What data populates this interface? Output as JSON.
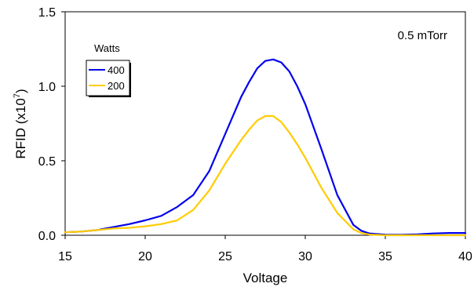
{
  "chart_data": {
    "type": "line",
    "xlabel": "Voltage",
    "ylabel": "RFID (x10",
    "ylabel_exponent": "7",
    "ylabel_suffix": ")",
    "annotation": "0.5 mTorr",
    "xlim": [
      15,
      40
    ],
    "ylim": [
      0,
      1.5
    ],
    "xticks": [
      15,
      20,
      25,
      30,
      35,
      40
    ],
    "yticks": [
      0.0,
      0.5,
      1.0,
      1.5
    ],
    "ytick_labels": [
      "0.0",
      "0.5",
      "1.0",
      "1.5"
    ],
    "grid": false,
    "legend": {
      "title": "Watts",
      "placement": "upper-left",
      "entries": [
        "400",
        "200"
      ]
    },
    "series": [
      {
        "name": "400",
        "color": "#0000ee",
        "x": [
          15,
          16,
          17,
          18,
          19,
          20,
          21,
          22,
          23,
          24,
          25,
          26,
          26.5,
          27,
          27.5,
          28,
          28.5,
          29,
          29.5,
          30,
          31,
          32,
          33,
          33.5,
          34,
          35,
          36,
          37,
          38,
          39,
          40
        ],
        "y": [
          0.02,
          0.025,
          0.035,
          0.055,
          0.075,
          0.1,
          0.13,
          0.19,
          0.27,
          0.43,
          0.68,
          0.93,
          1.03,
          1.12,
          1.17,
          1.18,
          1.16,
          1.1,
          1.0,
          0.88,
          0.58,
          0.27,
          0.07,
          0.03,
          0.012,
          0.004,
          0.003,
          0.006,
          0.012,
          0.015,
          0.015
        ]
      },
      {
        "name": "200",
        "color": "#ffcc00",
        "x": [
          15,
          16,
          17,
          18,
          19,
          20,
          21,
          22,
          23,
          24,
          25,
          26,
          26.5,
          27,
          27.5,
          28,
          28.5,
          29,
          29.5,
          30,
          31,
          32,
          33,
          33.5,
          34,
          35,
          36,
          37,
          38,
          39,
          40
        ],
        "y": [
          0.02,
          0.025,
          0.035,
          0.045,
          0.05,
          0.06,
          0.075,
          0.1,
          0.17,
          0.3,
          0.48,
          0.64,
          0.71,
          0.77,
          0.8,
          0.8,
          0.76,
          0.69,
          0.61,
          0.52,
          0.32,
          0.15,
          0.04,
          0.015,
          0.005,
          0.0,
          0.0,
          0.0,
          0.0,
          0.0,
          0.0
        ]
      }
    ]
  }
}
